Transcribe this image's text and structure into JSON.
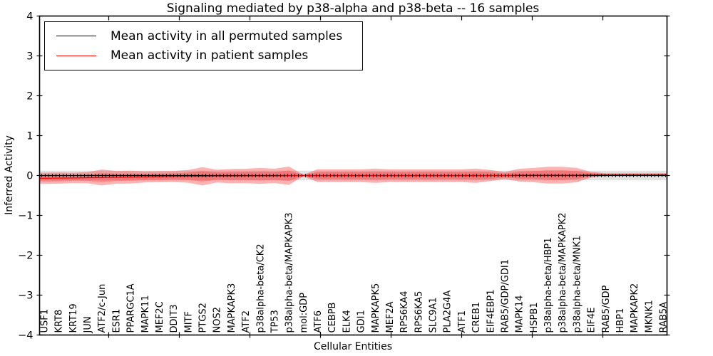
{
  "title": "Signaling mediated by p38-alpha and p38-beta -- 16 samples",
  "colors": {
    "patient": "#ff0000",
    "permuted": "#000000",
    "background": "#ffffff"
  },
  "chart_data": {
    "type": "line",
    "title": "Signaling mediated by p38-alpha and p38-beta -- 16 samples",
    "xlabel": "Cellular Entities",
    "ylabel": "Inferred Activity",
    "ylim": [
      -4,
      4
    ],
    "yticks": [
      -4,
      -3,
      -2,
      -1,
      0,
      1,
      2,
      3,
      4
    ],
    "grid": false,
    "legend_position": "upper left",
    "categories": [
      "USF1",
      "KRT8",
      "KRT19",
      "JUN",
      "ATF2/c-Jun",
      "ESR1",
      "PPARGC1A",
      "MAPK11",
      "MEF2C",
      "DDIT3",
      "MITF",
      "PTGS2",
      "NOS2",
      "MAPKAPK3",
      "ATF2",
      "p38alpha-beta/CK2",
      "TP53",
      "p38alpha-beta/MAPKAPK3",
      "mol:GDP",
      "ATF6",
      "CEBPB",
      "ELK4",
      "GDI1",
      "MAPKAPK5",
      "MEF2A",
      "RPS6KA4",
      "RPS6KA5",
      "SLC9A1",
      "PLA2G4A",
      "ATF1",
      "CREB1",
      "EIF4EBP1",
      "RAB5/GDP/GDI1",
      "MAPK14",
      "HSPB1",
      "p38alpha-beta/HBP1",
      "p38alpha-beta/MAPKAPK2",
      "p38alpha-beta/MNK1",
      "EIF4E",
      "RAB5/GDP",
      "HBP1",
      "MAPKAPK2",
      "MKNK1",
      "RAB5A"
    ],
    "series": [
      {
        "name": "Mean activity in all permuted samples",
        "color": "#000000",
        "marker": "plus",
        "values": [
          0,
          0,
          0,
          0,
          0,
          0,
          0,
          0,
          0,
          0,
          0,
          0,
          0,
          0,
          0,
          0,
          0,
          0,
          0,
          0,
          0,
          0,
          0,
          0,
          0,
          0,
          0,
          0,
          0,
          0,
          0,
          0,
          0,
          0,
          0,
          0,
          0,
          0,
          0,
          0,
          0,
          0,
          0,
          0
        ]
      },
      {
        "name": "Mean activity in patient samples",
        "color": "#ff0000",
        "marker": null,
        "values": [
          -0.07,
          -0.065,
          -0.06,
          -0.055,
          -0.05,
          -0.045,
          -0.04,
          -0.035,
          -0.03,
          -0.025,
          -0.02,
          -0.02,
          -0.015,
          -0.015,
          -0.01,
          -0.01,
          -0.01,
          -0.005,
          0,
          -0.005,
          -0.005,
          -0.005,
          -0.005,
          -0.005,
          -0.005,
          -0.005,
          -0.005,
          -0.005,
          -0.005,
          -0.005,
          -0.005,
          0,
          0,
          0.01,
          0.01,
          0.01,
          0.01,
          0.01,
          0.02,
          0.02,
          0.02,
          0.02,
          0.02,
          0.02
        ]
      }
    ],
    "bands": [
      {
        "name": "permuted-std-band",
        "color": "#3a3a3a",
        "opacity": 0.15,
        "center_series": 0,
        "half_width": 0.12
      },
      {
        "name": "patient-std-outer-band",
        "color": "#ff0000",
        "opacity": 0.3,
        "center_series": 1,
        "half_widths": [
          0.14,
          0.14,
          0.13,
          0.14,
          0.2,
          0.16,
          0.16,
          0.14,
          0.14,
          0.14,
          0.16,
          0.23,
          0.16,
          0.18,
          0.18,
          0.2,
          0.18,
          0.23,
          0.02,
          0.16,
          0.16,
          0.16,
          0.16,
          0.18,
          0.16,
          0.16,
          0.16,
          0.16,
          0.16,
          0.16,
          0.18,
          0.14,
          0.09,
          0.16,
          0.18,
          0.21,
          0.21,
          0.18,
          0.07,
          0.035,
          0.035,
          0.035,
          0.035,
          0.035
        ]
      },
      {
        "name": "patient-std-inner-band",
        "color": "#ff0000",
        "opacity": 0.24,
        "center_series": 1,
        "half_widths": [
          0.08,
          0.08,
          0.07,
          0.08,
          0.11,
          0.09,
          0.09,
          0.08,
          0.08,
          0.08,
          0.09,
          0.13,
          0.09,
          0.1,
          0.1,
          0.11,
          0.1,
          0.13,
          0.01,
          0.09,
          0.09,
          0.09,
          0.09,
          0.1,
          0.09,
          0.09,
          0.09,
          0.09,
          0.09,
          0.09,
          0.1,
          0.08,
          0.05,
          0.09,
          0.1,
          0.12,
          0.12,
          0.1,
          0.04,
          0.02,
          0.02,
          0.02,
          0.02,
          0.02
        ]
      }
    ]
  }
}
